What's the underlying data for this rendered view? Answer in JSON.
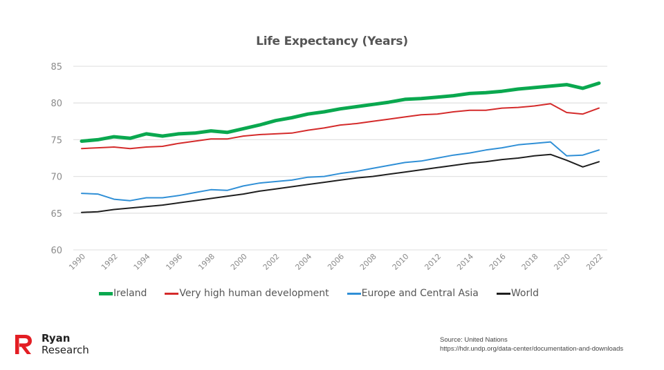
{
  "chart_data": {
    "type": "line",
    "title": "Life Expectancy (Years)",
    "xlabel": "",
    "ylabel": "",
    "ylim": [
      60,
      85
    ],
    "yticks": [
      60,
      65,
      70,
      75,
      80,
      85
    ],
    "xlim": [
      1990,
      2022
    ],
    "xticks": [
      "1990",
      "1992",
      "1994",
      "1996",
      "1998",
      "2000",
      "2002",
      "2004",
      "2006",
      "2008",
      "2010",
      "2012",
      "2014",
      "2016",
      "2018",
      "2020",
      "2022"
    ],
    "grid": true,
    "legend_position": "bottom",
    "x": [
      1990,
      1991,
      1992,
      1993,
      1994,
      1995,
      1996,
      1997,
      1998,
      1999,
      2000,
      2001,
      2002,
      2003,
      2004,
      2005,
      2006,
      2007,
      2008,
      2009,
      2010,
      2011,
      2012,
      2013,
      2014,
      2015,
      2016,
      2017,
      2018,
      2019,
      2020,
      2021,
      2022
    ],
    "series": [
      {
        "name": "Ireland",
        "color": "#0aa84f",
        "values": [
          74.8,
          75.0,
          75.4,
          75.2,
          75.8,
          75.5,
          75.8,
          75.9,
          76.2,
          76.0,
          76.5,
          77.0,
          77.6,
          78.0,
          78.5,
          78.8,
          79.2,
          79.5,
          79.8,
          80.1,
          80.5,
          80.6,
          80.8,
          81.0,
          81.3,
          81.4,
          81.6,
          81.9,
          82.1,
          82.3,
          82.5,
          82.0,
          82.7
        ]
      },
      {
        "name": "Very high human development",
        "color": "#d42a2a",
        "values": [
          73.8,
          73.9,
          74.0,
          73.8,
          74.0,
          74.1,
          74.5,
          74.8,
          75.1,
          75.1,
          75.5,
          75.7,
          75.8,
          75.9,
          76.3,
          76.6,
          77.0,
          77.2,
          77.5,
          77.8,
          78.1,
          78.4,
          78.5,
          78.8,
          79.0,
          79.0,
          79.3,
          79.4,
          79.6,
          79.9,
          78.7,
          78.5,
          79.3
        ]
      },
      {
        "name": "Europe and Central Asia",
        "color": "#2f8fd6",
        "values": [
          67.7,
          67.6,
          66.9,
          66.7,
          67.1,
          67.1,
          67.4,
          67.8,
          68.2,
          68.1,
          68.7,
          69.1,
          69.3,
          69.5,
          69.9,
          70.0,
          70.4,
          70.7,
          71.1,
          71.5,
          71.9,
          72.1,
          72.5,
          72.9,
          73.2,
          73.6,
          73.9,
          74.3,
          74.5,
          74.7,
          72.8,
          72.9,
          73.6
        ]
      },
      {
        "name": "World",
        "color": "#1e1e1e",
        "values": [
          65.1,
          65.2,
          65.5,
          65.7,
          65.9,
          66.1,
          66.4,
          66.7,
          67.0,
          67.3,
          67.6,
          68.0,
          68.3,
          68.6,
          68.9,
          69.2,
          69.5,
          69.8,
          70.0,
          70.3,
          70.6,
          70.9,
          71.2,
          71.5,
          71.8,
          72.0,
          72.3,
          72.5,
          72.8,
          73.0,
          72.2,
          71.3,
          72.0
        ]
      }
    ]
  },
  "branding": {
    "logo_line1": "Ryan",
    "logo_line2": "Research",
    "logo_color": "#e31e24"
  },
  "source": {
    "line1": "Source: United Nations",
    "line2": "https://hdr.undp.org/data-center/documentation-and-downloads"
  }
}
